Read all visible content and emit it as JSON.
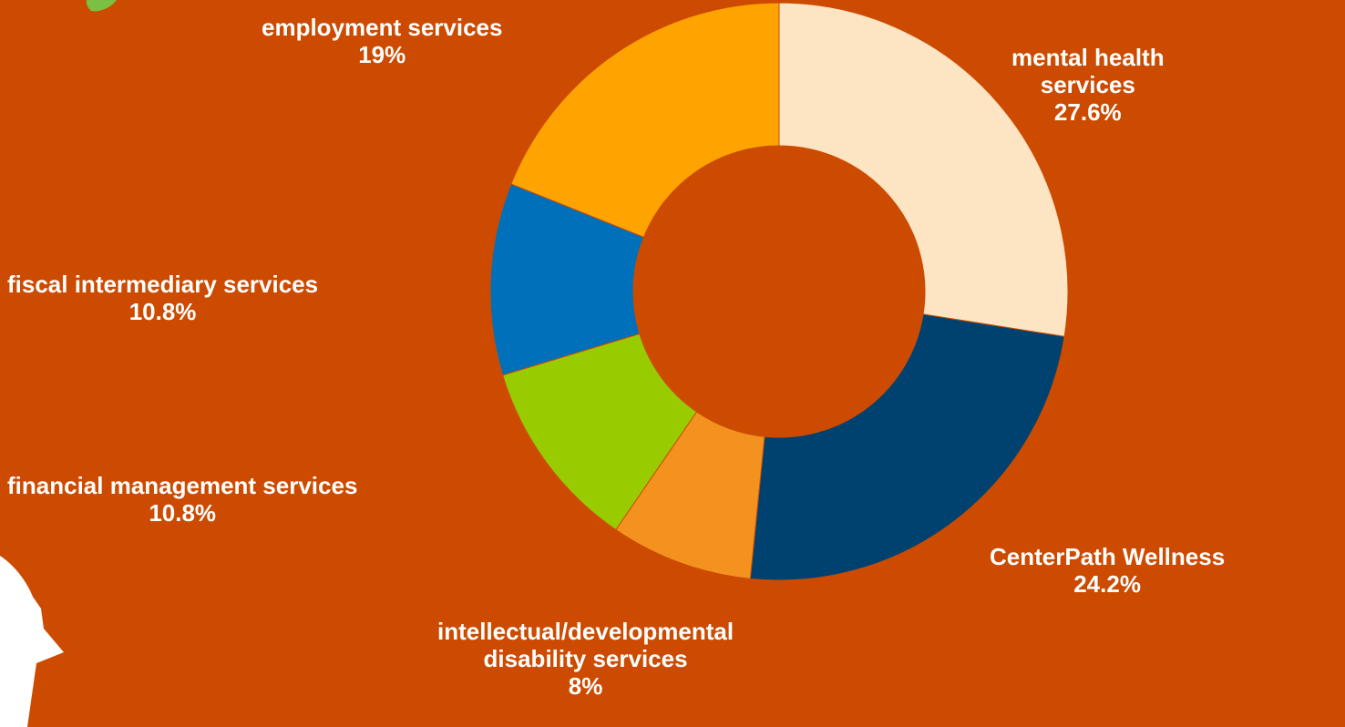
{
  "chart_data": {
    "type": "pie",
    "donut": true,
    "title": "",
    "legend": "none",
    "unit": "%",
    "slices": [
      {
        "name": "mental health services",
        "label_lines": [
          "mental health",
          "services"
        ],
        "value": 27.6,
        "value_label": "27.6%",
        "color": "#fde4c2"
      },
      {
        "name": "CenterPath Wellness",
        "label_lines": [
          "CenterPath Wellness"
        ],
        "value": 24.2,
        "value_label": "24.2%",
        "color": "#00426f"
      },
      {
        "name": "intellectual/developmental disability services",
        "label_lines": [
          "intellectual/developmental",
          "disability services"
        ],
        "value": 8,
        "value_label": "8%",
        "color": "#f3921e"
      },
      {
        "name": "financial management services",
        "label_lines": [
          "financial management services"
        ],
        "value": 10.8,
        "value_label": "10.8%",
        "color": "#99cc00"
      },
      {
        "name": "fiscal intermediary services",
        "label_lines": [
          "fiscal intermediary services"
        ],
        "value": 10.8,
        "value_label": "10.8%",
        "color": "#0070ba"
      },
      {
        "name": "employment services",
        "label_lines": [
          "employment services"
        ],
        "value": 19,
        "value_label": "19%",
        "color": "#ffa300"
      }
    ]
  },
  "colors": {
    "background": "#cc4b00",
    "label_text": "#ffffff",
    "decoration_white": "#ffffff",
    "decoration_green": "#7bc043"
  }
}
